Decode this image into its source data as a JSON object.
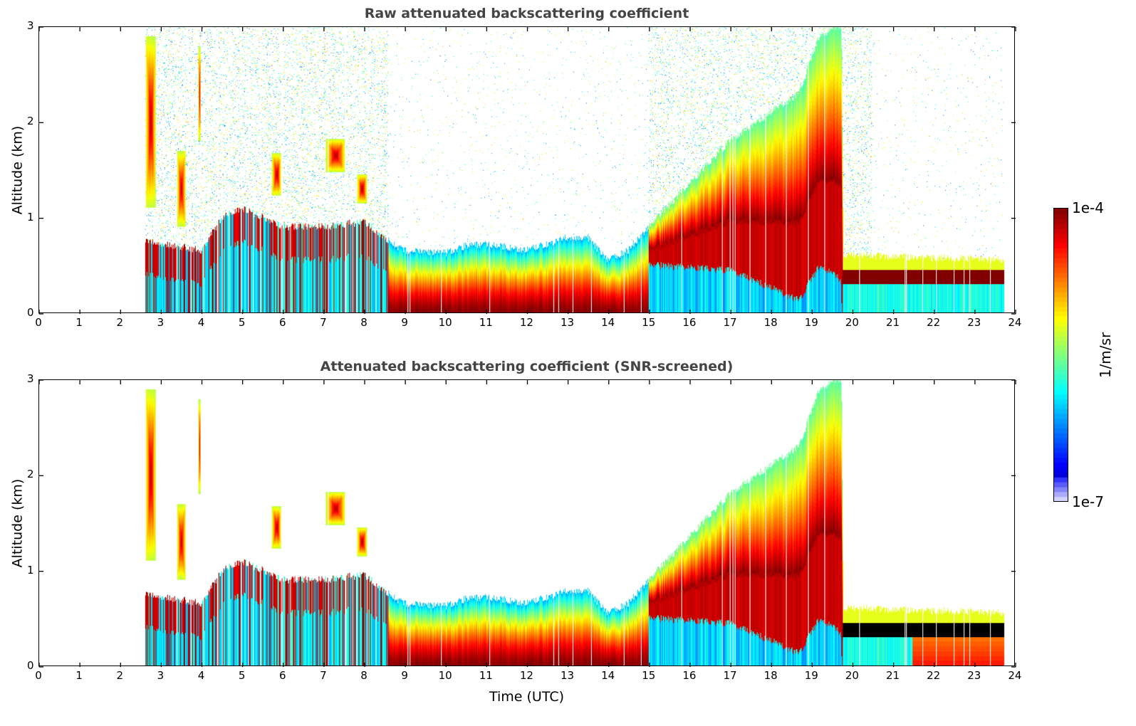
{
  "chart_data": [
    {
      "type": "heatmap",
      "id": "raw",
      "title": "Raw attenuated backscattering coefficient",
      "xlabel": "",
      "ylabel": "Altitude (km)",
      "xlim": [
        0,
        24
      ],
      "ylim": [
        0,
        3
      ],
      "x_ticks": [
        "0",
        "1",
        "2",
        "3",
        "4",
        "5",
        "6",
        "7",
        "8",
        "9",
        "10",
        "11",
        "12",
        "13",
        "14",
        "15",
        "16",
        "17",
        "18",
        "19",
        "20",
        "21",
        "22",
        "23",
        "24"
      ],
      "y_ticks": [
        "0",
        "1",
        "2",
        "3"
      ],
      "screened": false
    },
    {
      "type": "heatmap",
      "id": "snr",
      "title": "Attenuated backscattering coefficient (SNR-screened)",
      "xlabel": "Time (UTC)",
      "ylabel": "Altitude (km)",
      "xlim": [
        0,
        24
      ],
      "ylim": [
        0,
        3
      ],
      "x_ticks": [
        "0",
        "1",
        "2",
        "3",
        "4",
        "5",
        "6",
        "7",
        "8",
        "9",
        "10",
        "11",
        "12",
        "13",
        "14",
        "15",
        "16",
        "17",
        "18",
        "19",
        "20",
        "21",
        "22",
        "23",
        "24"
      ],
      "y_ticks": [
        "0",
        "1",
        "2",
        "3"
      ],
      "screened": true
    }
  ],
  "measurement": {
    "start_h": 2.6,
    "end_h": 23.75
  },
  "layer_top_km": [
    [
      2.6,
      0.75
    ],
    [
      4,
      0.65
    ],
    [
      4.5,
      1.0
    ],
    [
      5,
      1.1
    ],
    [
      5.5,
      1.0
    ],
    [
      6,
      0.9
    ],
    [
      7,
      0.9
    ],
    [
      8,
      0.95
    ],
    [
      8.6,
      0.75
    ],
    [
      9,
      0.65
    ],
    [
      10,
      0.62
    ],
    [
      10.5,
      0.7
    ],
    [
      11,
      0.72
    ],
    [
      12,
      0.65
    ],
    [
      13,
      0.78
    ],
    [
      13.5,
      0.78
    ],
    [
      14,
      0.55
    ],
    [
      14.5,
      0.65
    ],
    [
      15,
      0.9
    ],
    [
      16,
      1.35
    ],
    [
      17,
      1.8
    ],
    [
      18,
      2.1
    ],
    [
      18.7,
      2.3
    ],
    [
      19.2,
      2.9
    ],
    [
      19.6,
      3.0
    ],
    [
      19.75,
      3.0
    ],
    [
      19.8,
      0.6
    ],
    [
      23.75,
      0.55
    ]
  ],
  "plumes": [
    [
      2.75,
      2.0,
      0.12,
      1.8
    ],
    [
      3.5,
      1.3,
      0.1,
      0.8
    ],
    [
      3.95,
      2.3,
      0.03,
      1.0
    ],
    [
      5.85,
      1.45,
      0.12,
      0.45
    ],
    [
      7.3,
      1.65,
      0.25,
      0.35
    ],
    [
      7.95,
      1.3,
      0.12,
      0.3
    ]
  ],
  "colorbar": {
    "label": "1/m/sr",
    "max_label": "1e-4",
    "min_label": "1e-7",
    "log_min": -7,
    "log_max": -4,
    "colormap": "jet"
  }
}
